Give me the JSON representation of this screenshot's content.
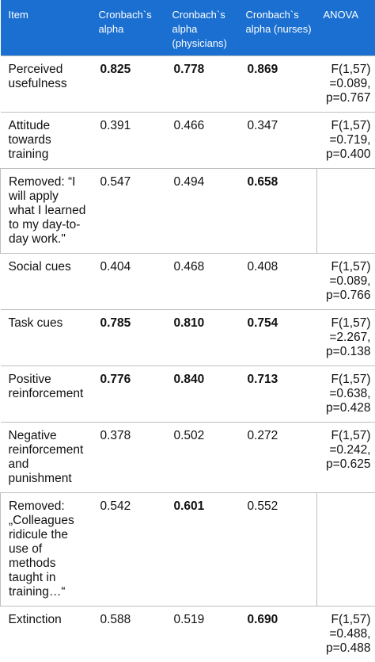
{
  "header": {
    "item": "Item",
    "alpha": "Cronbach`s alpha",
    "alpha_physicians": "Cronbach`s alpha (physicians)",
    "alpha_nurses": "Cronbach`s alpha (nurses)",
    "anova": "ANOVA"
  },
  "rows": [
    {
      "item": "Perceived usefulness",
      "a": "0.825",
      "p": "0.778",
      "n": "0.869",
      "anova": "F(1,57) =0.089, p=0.767"
    },
    {
      "item": "Attitude towards training",
      "a": "0.391",
      "p": "0.466",
      "n": "0.347",
      "anova": "F(1,57) =0.719, p=0.400"
    },
    {
      "item": "Removed: “I will apply what I learned to my day-to-day work.\"",
      "a": "0.547",
      "p": "0.494",
      "n": "0.658",
      "anova": ""
    },
    {
      "item": "Social cues",
      "a": "0.404",
      "p": "0.468",
      "n": "0.408",
      "anova": "F(1,57) =0.089, p=0.766"
    },
    {
      "item": "Task cues",
      "a": "0.785",
      "p": "0.810",
      "n": "0.754",
      "anova": "F(1,57) =2.267, p=0.138"
    },
    {
      "item": "Positive reinforcement",
      "a": "0.776",
      "p": "0.840",
      "n": "0.713",
      "anova": "F(1,57) =0.638, p=0.428"
    },
    {
      "item": "Negative reinforcement and punishment",
      "a": "0.378",
      "p": "0.502",
      "n": "0.272",
      "anova": "F(1,57) =0.242, p=0.625"
    },
    {
      "item": "Removed: „Colleagues ridicule the use of methods taught in training…“",
      "a": "0.542",
      "p": "0.601",
      "n": "0.552",
      "anova": ""
    },
    {
      "item": "Extinction",
      "a": "0.588",
      "p": "0.519",
      "n": "0.690",
      "anova": "F(1,57) =0.488, p=0.488"
    }
  ]
}
